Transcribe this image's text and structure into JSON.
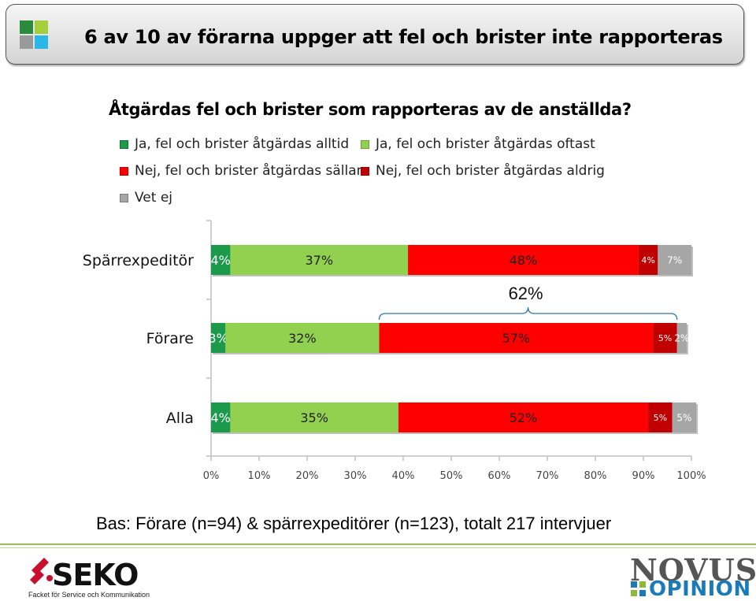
{
  "header": {
    "title": "6 av 10 av förarna uppger att fel och brister inte rapporteras"
  },
  "colors": {
    "logo": [
      "#2a8a3e",
      "#a4cf3a",
      "#9a9a9a",
      "#2ab7e6"
    ],
    "series": [
      "#1a9a4a",
      "#92d050",
      "#ff0000",
      "#c00000",
      "#a6a6a6"
    ],
    "bracket": "#2e75b6",
    "footer_line": "#9bbb59"
  },
  "chart_data": {
    "type": "bar",
    "orientation": "horizontal",
    "stacked": true,
    "title": "Åtgärdas fel och brister som rapporteras av de anställda?",
    "categories": [
      "Spärrexpeditör",
      "Förare",
      "Alla"
    ],
    "series": [
      {
        "name": "Ja, fel och brister åtgärdas alltid",
        "values": [
          4,
          3,
          4
        ],
        "labels": [
          "4%",
          "3%",
          "4%"
        ]
      },
      {
        "name": "Ja, fel och brister åtgärdas oftast",
        "values": [
          37,
          32,
          35
        ],
        "labels": [
          "37%",
          "32%",
          "35%"
        ]
      },
      {
        "name": "Nej, fel och brister åtgärdas sällan",
        "values": [
          48,
          57,
          52
        ],
        "labels": [
          "48%",
          "57%",
          "52%"
        ]
      },
      {
        "name": "Nej, fel och brister åtgärdas aldrig",
        "values": [
          4,
          5,
          5
        ],
        "labels": [
          "4%",
          "5%",
          "5%"
        ]
      },
      {
        "name": "Vet ej",
        "values": [
          7,
          2,
          5
        ],
        "labels": [
          "7%",
          "2%",
          "5%"
        ]
      }
    ],
    "xlim": [
      0,
      100
    ],
    "xticks": [
      "0%",
      "10%",
      "20%",
      "30%",
      "40%",
      "50%",
      "60%",
      "70%",
      "80%",
      "90%",
      "100%"
    ],
    "legend_position": "top",
    "annotation": {
      "text": "62%",
      "category": "Förare",
      "from": 35,
      "to": 97
    }
  },
  "footer": {
    "base_text": "Bas: Förare (n=94) & spärrexpeditörer (n=123), totalt 217 intervjuer",
    "seko_name": "SEKO",
    "seko_sub": "Facket för Service och Kommunikation",
    "novus": "NOVUS",
    "opinion": "OPINION"
  }
}
